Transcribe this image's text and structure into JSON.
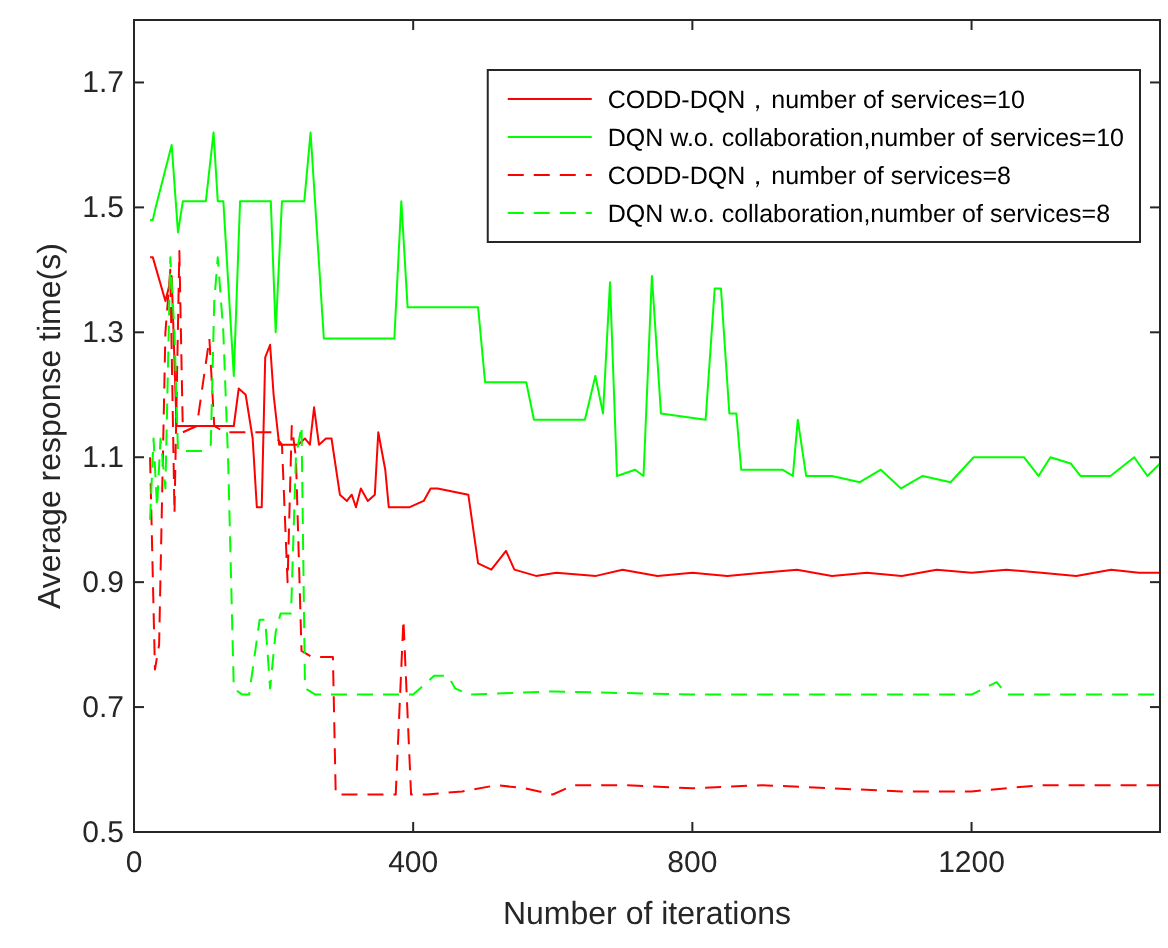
{
  "chart_data": {
    "type": "line",
    "xlabel": "Number of iterations",
    "ylabel": "Average response time(s)",
    "xlim": [
      0,
      1470
    ],
    "ylim": [
      0.5,
      1.8
    ],
    "xticks": [
      0,
      400,
      800,
      1200
    ],
    "yticks": [
      0.5,
      0.7,
      0.9,
      1.1,
      1.3,
      1.5,
      1.7
    ],
    "grid": false,
    "legend": "top right",
    "series": [
      {
        "name": "CODD-DQN，number of services=10",
        "color": "#ff0000",
        "line_style": "solid",
        "x": [
          23,
          27,
          45,
          54,
          61,
          100,
          143,
          150,
          160,
          170,
          176,
          183,
          188,
          195,
          200,
          208,
          235,
          245,
          252,
          258,
          265,
          275,
          283,
          295,
          305,
          312,
          318,
          325,
          335,
          345,
          350,
          360,
          365,
          395,
          415,
          425,
          435,
          479,
          493,
          512,
          533,
          545,
          576,
          605,
          662,
          700,
          750,
          800,
          850,
          900,
          950,
          1000,
          1050,
          1100,
          1150,
          1200,
          1250,
          1300,
          1350,
          1400,
          1440,
          1470
        ],
        "values": [
          1.42,
          1.42,
          1.35,
          1.39,
          1.15,
          1.15,
          1.15,
          1.21,
          1.2,
          1.13,
          1.02,
          1.02,
          1.26,
          1.28,
          1.2,
          1.12,
          1.12,
          1.13,
          1.12,
          1.18,
          1.12,
          1.13,
          1.13,
          1.04,
          1.03,
          1.04,
          1.02,
          1.05,
          1.03,
          1.04,
          1.14,
          1.08,
          1.02,
          1.02,
          1.03,
          1.05,
          1.05,
          1.04,
          0.93,
          0.92,
          0.95,
          0.92,
          0.91,
          0.915,
          0.91,
          0.92,
          0.91,
          0.915,
          0.91,
          0.915,
          0.92,
          0.91,
          0.915,
          0.91,
          0.92,
          0.915,
          0.92,
          0.915,
          0.91,
          0.92,
          0.915,
          0.915
        ]
      },
      {
        "name": "DQN w.o. collaboration,number of services=10",
        "color": "#00ff00",
        "line_style": "solid",
        "x": [
          23,
          27,
          31,
          54,
          63,
          70,
          103,
          114,
          120,
          128,
          143,
          152,
          196,
          203,
          212,
          244,
          253,
          272,
          373,
          383,
          392,
          493,
          503,
          562,
          573,
          613,
          646,
          661,
          672,
          682,
          692,
          718,
          730,
          742,
          755,
          819,
          832,
          841,
          853,
          863,
          870,
          901,
          929,
          944,
          951,
          963,
          1000,
          1040,
          1070,
          1099,
          1130,
          1170,
          1203,
          1275,
          1296,
          1313,
          1342,
          1356,
          1399,
          1433,
          1452,
          1470
        ],
        "values": [
          1.48,
          1.48,
          1.5,
          1.6,
          1.46,
          1.51,
          1.51,
          1.62,
          1.51,
          1.51,
          1.23,
          1.51,
          1.51,
          1.3,
          1.51,
          1.51,
          1.62,
          1.29,
          1.29,
          1.51,
          1.34,
          1.34,
          1.22,
          1.22,
          1.16,
          1.16,
          1.16,
          1.23,
          1.17,
          1.38,
          1.07,
          1.08,
          1.07,
          1.39,
          1.17,
          1.16,
          1.37,
          1.37,
          1.17,
          1.17,
          1.08,
          1.08,
          1.08,
          1.07,
          1.16,
          1.07,
          1.07,
          1.06,
          1.08,
          1.05,
          1.07,
          1.06,
          1.1,
          1.1,
          1.07,
          1.1,
          1.09,
          1.07,
          1.07,
          1.1,
          1.07,
          1.09
        ]
      },
      {
        "name": "CODD-DQN，number of services=8",
        "color": "#ff0000",
        "line_style": "dashed",
        "x": [
          23,
          30,
          36,
          45,
          52,
          58,
          65,
          70,
          90,
          108,
          115,
          130,
          150,
          175,
          198,
          212,
          220,
          226,
          232,
          240,
          255,
          285,
          289,
          375,
          386,
          397,
          420,
          470,
          520,
          560,
          600,
          630,
          700,
          800,
          900,
          1000,
          1100,
          1200,
          1300,
          1400,
          1470
        ],
        "values": [
          1.1,
          0.76,
          0.8,
          1.3,
          1.4,
          1.01,
          1.43,
          1.14,
          1.15,
          1.29,
          1.15,
          1.14,
          1.14,
          1.14,
          1.14,
          1.12,
          0.9,
          1.15,
          1.1,
          0.79,
          0.78,
          0.78,
          0.56,
          0.56,
          0.84,
          0.56,
          0.56,
          0.565,
          0.575,
          0.57,
          0.56,
          0.575,
          0.575,
          0.57,
          0.575,
          0.57,
          0.565,
          0.565,
          0.575,
          0.575,
          0.575
        ]
      },
      {
        "name": "DQN w.o. collaboration,number of services=8",
        "color": "#00ff00",
        "line_style": "dashed",
        "x": [
          23,
          28,
          33,
          38,
          45,
          52,
          58,
          63,
          100,
          110,
          115,
          120,
          128,
          135,
          143,
          155,
          165,
          180,
          188,
          195,
          203,
          210,
          225,
          232,
          240,
          245,
          260,
          400,
          430,
          450,
          460,
          480,
          600,
          800,
          1000,
          1200,
          1236,
          1250,
          1400,
          1470
        ],
        "values": [
          1.0,
          1.13,
          1.02,
          1.13,
          1.05,
          1.42,
          1.3,
          1.11,
          1.11,
          1.12,
          1.35,
          1.42,
          1.3,
          1.09,
          0.73,
          0.72,
          0.72,
          0.84,
          0.84,
          0.73,
          0.82,
          0.85,
          0.85,
          1.1,
          1.15,
          0.73,
          0.72,
          0.72,
          0.75,
          0.75,
          0.73,
          0.72,
          0.725,
          0.72,
          0.72,
          0.72,
          0.74,
          0.72,
          0.72,
          0.72
        ]
      }
    ]
  }
}
